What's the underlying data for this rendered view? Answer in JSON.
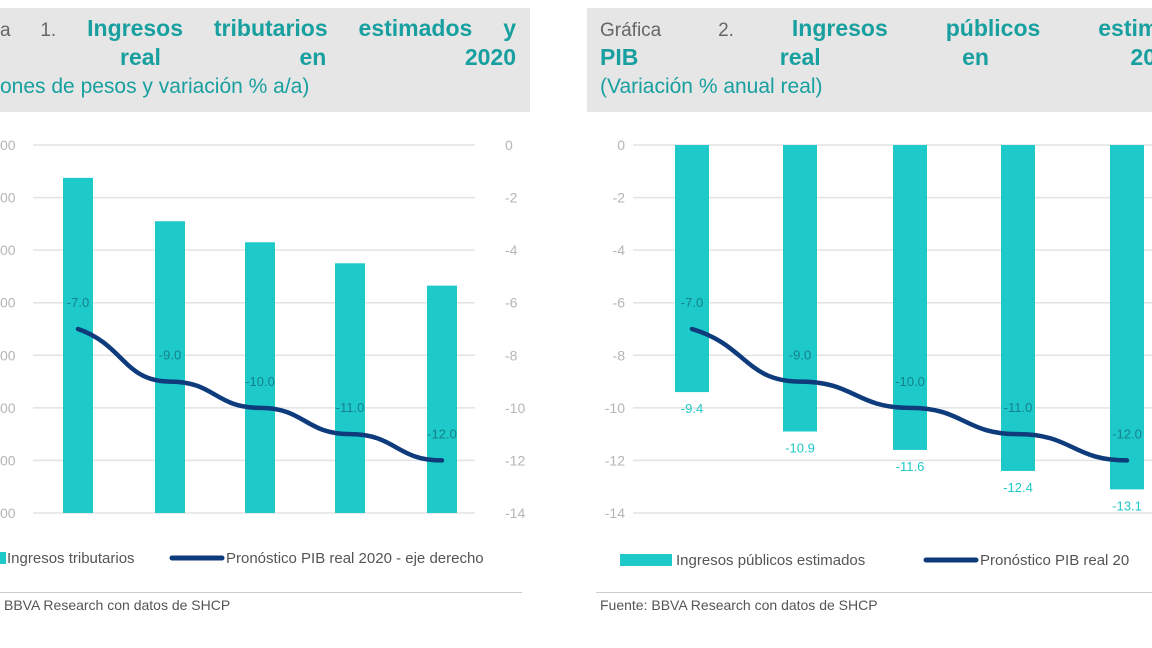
{
  "colors": {
    "bar": "#1ec9c9",
    "line": "#0d3b7c",
    "title": "#189f9f",
    "grid": "#e3e3e3",
    "axis_text": "#b5b5b5"
  },
  "chart_data": [
    {
      "type": "bar+line",
      "title_prefix": "a 1.",
      "title_line1": "Ingresos tributarios estimados y",
      "title_line2": "real en 2020",
      "subtitle": "ones de pesos y variación % a/a)",
      "left_axis_ticks": [
        "00",
        "00",
        "00",
        "00",
        "00",
        "00",
        "00",
        "00"
      ],
      "right_axis": {
        "ticks": [
          "0",
          "-2",
          "-4",
          "-6",
          "-8",
          "-10",
          "-12",
          "-14"
        ],
        "ylim": [
          -14,
          0
        ]
      },
      "bar_series": {
        "name": "Ingresos tributarios",
        "values_on_right_axis_scale": [
          -1.25,
          -2.9,
          -3.7,
          -4.5,
          -5.35
        ],
        "labels": []
      },
      "line_series": {
        "name": "Pronóstico PIB real 2020 - eje derecho",
        "values": [
          -7.0,
          -9.0,
          -10.0,
          -11.0,
          -12.0
        ],
        "labels": [
          "-7.0",
          "-9.0",
          "-10.0",
          "-11.0",
          "-12.0"
        ]
      },
      "bar_baseline": -14,
      "source": "BBVA Research con datos de SHCP",
      "grid": true,
      "legend": "bottom"
    },
    {
      "type": "bar+line",
      "title_prefix": "Gráfica 2.",
      "title_line1": "Ingresos públicos estimados",
      "title_line2": "PIB real en 20",
      "subtitle": "(Variación % anual real)",
      "left_axis_ticks": [
        "0",
        "-2",
        "-4",
        "-6",
        "-8",
        "-10",
        "-12",
        "-14"
      ],
      "axis": {
        "ylim": [
          -14,
          0
        ]
      },
      "bar_series": {
        "name": "Ingresos públicos estimados",
        "values": [
          -9.4,
          -10.9,
          -11.6,
          -12.4,
          -13.1
        ],
        "labels": [
          "-9.4",
          "-10.9",
          "-11.6",
          "-12.4",
          "-13.1"
        ]
      },
      "line_series": {
        "name": "Pronóstico PIB real 20",
        "values": [
          -7.0,
          -9.0,
          -10.0,
          -11.0,
          -12.0
        ],
        "labels": [
          "-7.0",
          "-9.0",
          "-10.0",
          "-11.0",
          "-12.0"
        ]
      },
      "bar_baseline": 0,
      "source": "Fuente: BBVA Research con datos de SHCP",
      "grid": true,
      "legend": "bottom"
    }
  ]
}
